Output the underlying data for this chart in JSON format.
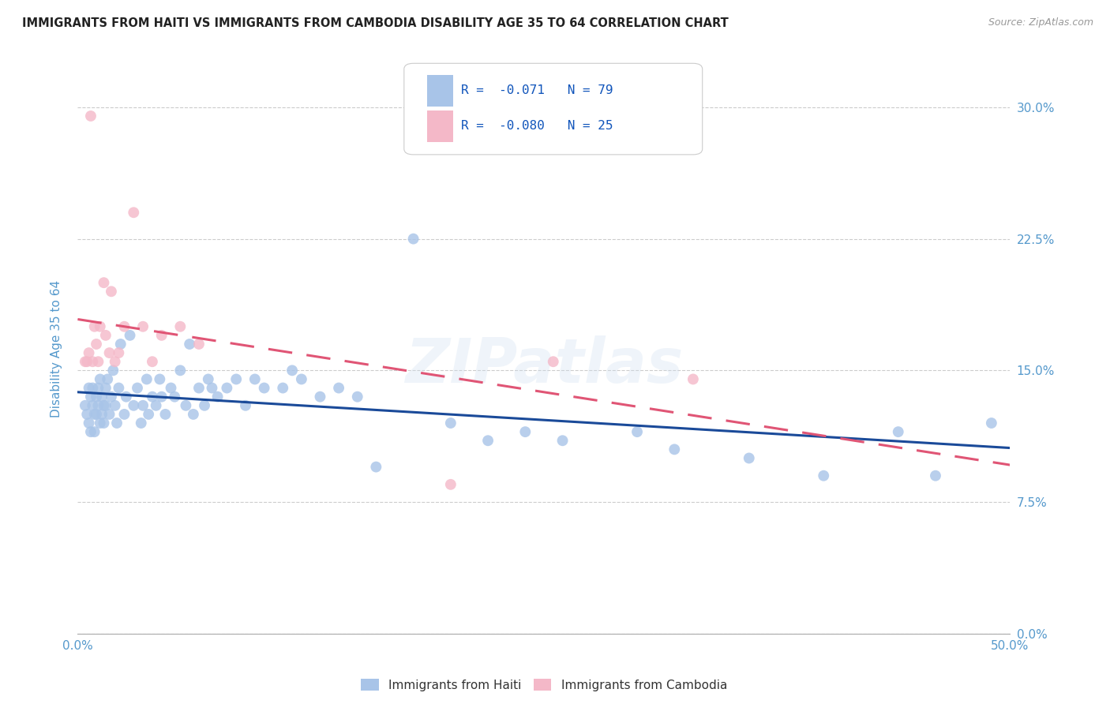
{
  "title": "IMMIGRANTS FROM HAITI VS IMMIGRANTS FROM CAMBODIA DISABILITY AGE 35 TO 64 CORRELATION CHART",
  "source": "Source: ZipAtlas.com",
  "ylabel": "Disability Age 35 to 64",
  "xlim": [
    0.0,
    0.5
  ],
  "ylim": [
    0.0,
    0.325
  ],
  "xticks": [
    0.0,
    0.1,
    0.2,
    0.3,
    0.4,
    0.5
  ],
  "xticklabels_show": [
    "0.0%",
    "",
    "",
    "",
    "",
    "50.0%"
  ],
  "yticks": [
    0.0,
    0.075,
    0.15,
    0.225,
    0.3
  ],
  "yticklabels": [
    "0.0%",
    "7.5%",
    "15.0%",
    "22.5%",
    "30.0%"
  ],
  "legend_r_haiti": "-0.071",
  "legend_n_haiti": "79",
  "legend_r_cambodia": "-0.080",
  "legend_n_cambodia": "25",
  "haiti_color": "#a8c4e8",
  "cambodia_color": "#f4b8c8",
  "haiti_line_color": "#1a4a99",
  "cambodia_line_color": "#e05575",
  "background_color": "#ffffff",
  "grid_color": "#cccccc",
  "title_color": "#222222",
  "axis_label_color": "#5599cc",
  "tick_color": "#5599cc",
  "watermark": "ZIPatlas",
  "haiti_x": [
    0.004,
    0.005,
    0.006,
    0.006,
    0.007,
    0.007,
    0.008,
    0.008,
    0.009,
    0.009,
    0.01,
    0.01,
    0.011,
    0.011,
    0.012,
    0.012,
    0.013,
    0.013,
    0.014,
    0.014,
    0.015,
    0.015,
    0.016,
    0.017,
    0.018,
    0.019,
    0.02,
    0.021,
    0.022,
    0.023,
    0.025,
    0.026,
    0.028,
    0.03,
    0.032,
    0.034,
    0.035,
    0.037,
    0.038,
    0.04,
    0.042,
    0.044,
    0.045,
    0.047,
    0.05,
    0.052,
    0.055,
    0.058,
    0.06,
    0.062,
    0.065,
    0.068,
    0.07,
    0.072,
    0.075,
    0.08,
    0.085,
    0.09,
    0.095,
    0.1,
    0.11,
    0.115,
    0.12,
    0.13,
    0.14,
    0.15,
    0.16,
    0.18,
    0.2,
    0.22,
    0.24,
    0.26,
    0.3,
    0.32,
    0.36,
    0.4,
    0.44,
    0.46,
    0.49
  ],
  "haiti_y": [
    0.13,
    0.125,
    0.14,
    0.12,
    0.135,
    0.115,
    0.13,
    0.14,
    0.125,
    0.115,
    0.135,
    0.125,
    0.14,
    0.13,
    0.12,
    0.145,
    0.125,
    0.135,
    0.13,
    0.12,
    0.14,
    0.13,
    0.145,
    0.125,
    0.135,
    0.15,
    0.13,
    0.12,
    0.14,
    0.165,
    0.125,
    0.135,
    0.17,
    0.13,
    0.14,
    0.12,
    0.13,
    0.145,
    0.125,
    0.135,
    0.13,
    0.145,
    0.135,
    0.125,
    0.14,
    0.135,
    0.15,
    0.13,
    0.165,
    0.125,
    0.14,
    0.13,
    0.145,
    0.14,
    0.135,
    0.14,
    0.145,
    0.13,
    0.145,
    0.14,
    0.14,
    0.15,
    0.145,
    0.135,
    0.14,
    0.135,
    0.095,
    0.225,
    0.12,
    0.11,
    0.115,
    0.11,
    0.115,
    0.105,
    0.1,
    0.09,
    0.115,
    0.09,
    0.12
  ],
  "cambodia_x": [
    0.004,
    0.005,
    0.006,
    0.007,
    0.008,
    0.009,
    0.01,
    0.011,
    0.012,
    0.014,
    0.015,
    0.017,
    0.018,
    0.02,
    0.022,
    0.025,
    0.03,
    0.035,
    0.04,
    0.045,
    0.055,
    0.065,
    0.2,
    0.255,
    0.33
  ],
  "cambodia_y": [
    0.155,
    0.155,
    0.16,
    0.295,
    0.155,
    0.175,
    0.165,
    0.155,
    0.175,
    0.2,
    0.17,
    0.16,
    0.195,
    0.155,
    0.16,
    0.175,
    0.24,
    0.175,
    0.155,
    0.17,
    0.175,
    0.165,
    0.085,
    0.155,
    0.145
  ]
}
